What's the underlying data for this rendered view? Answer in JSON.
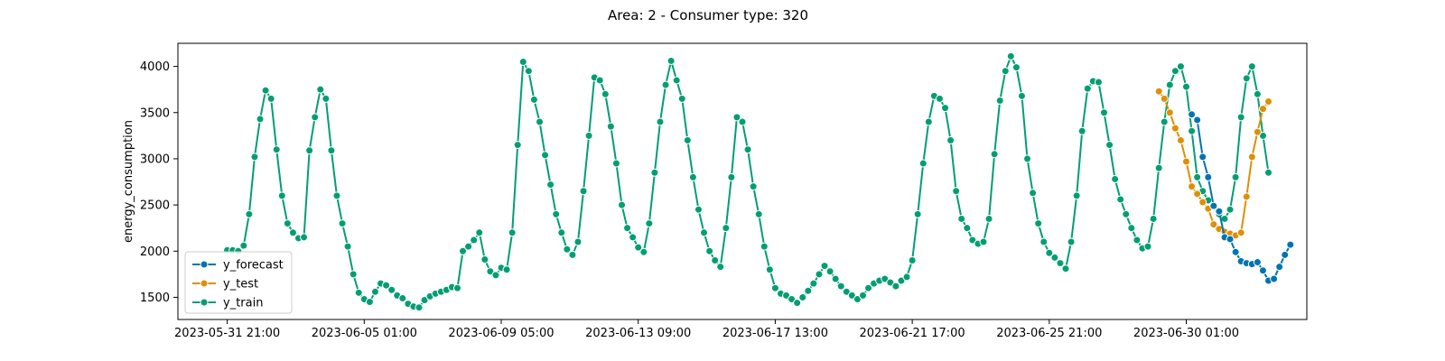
{
  "chart_data": {
    "type": "line",
    "title": "Area: 2 - Consumer type: 320",
    "xlabel": "",
    "ylabel": "energy_consumption",
    "x_start": "2023-05-31 21:00",
    "x_step_hours": 4,
    "xticks": [
      {
        "label": "2023-05-31 21:00",
        "index": 0
      },
      {
        "label": "2023-06-05 01:00",
        "index": 25
      },
      {
        "label": "2023-06-09 05:00",
        "index": 50
      },
      {
        "label": "2023-06-13 09:00",
        "index": 75
      },
      {
        "label": "2023-06-17 13:00",
        "index": 100
      },
      {
        "label": "2023-06-21 17:00",
        "index": 125
      },
      {
        "label": "2023-06-25 21:00",
        "index": 150
      },
      {
        "label": "2023-06-30 01:00",
        "index": 175
      }
    ],
    "yticks": [
      1500,
      2000,
      2500,
      3000,
      3500,
      4000
    ],
    "xlim": [
      -9,
      197
    ],
    "ylim": [
      1260,
      4250
    ],
    "legend_position": "lower-left",
    "series": [
      {
        "name": "y_forecast",
        "color": "#0173b2",
        "start_index": 176,
        "values": [
          3480,
          3420,
          3020,
          2800,
          2490,
          2430,
          2150,
          2130,
          1990,
          1890,
          1870,
          1860,
          1880,
          1790,
          1680,
          1700,
          1830,
          1960,
          2070
        ]
      },
      {
        "name": "y_test",
        "color": "#de8f05",
        "start_index": 170,
        "values": [
          3730,
          3650,
          3500,
          3330,
          3200,
          2970,
          2700,
          2620,
          2530,
          2460,
          2290,
          2240,
          2210,
          2190,
          2170,
          2200,
          2590,
          3020,
          3290,
          3540,
          3620
        ]
      },
      {
        "name": "y_train",
        "color": "#029e73",
        "start_index": 0,
        "values": [
          2010,
          2010,
          2000,
          2060,
          2400,
          3020,
          3430,
          3740,
          3650,
          3100,
          2600,
          2300,
          2200,
          2140,
          2150,
          3090,
          3450,
          3750,
          3650,
          3090,
          2600,
          2300,
          2050,
          1750,
          1550,
          1480,
          1450,
          1560,
          1650,
          1630,
          1580,
          1520,
          1490,
          1430,
          1400,
          1390,
          1470,
          1510,
          1540,
          1560,
          1580,
          1610,
          1600,
          2000,
          2050,
          2120,
          2200,
          1910,
          1780,
          1740,
          1820,
          1800,
          2200,
          3150,
          4050,
          3950,
          3640,
          3400,
          3040,
          2720,
          2400,
          2200,
          2020,
          1960,
          2100,
          2650,
          3250,
          3880,
          3850,
          3700,
          3350,
          2950,
          2500,
          2250,
          2150,
          2040,
          1990,
          2300,
          2850,
          3400,
          3800,
          4060,
          3850,
          3650,
          3200,
          2800,
          2450,
          2200,
          2000,
          1900,
          1830,
          2250,
          2800,
          3450,
          3400,
          3100,
          2700,
          2400,
          2050,
          1800,
          1600,
          1540,
          1520,
          1480,
          1440,
          1500,
          1570,
          1650,
          1750,
          1840,
          1780,
          1700,
          1620,
          1560,
          1520,
          1480,
          1520,
          1600,
          1650,
          1680,
          1700,
          1660,
          1620,
          1680,
          1720,
          1900,
          2400,
          2950,
          3400,
          3680,
          3650,
          3550,
          3200,
          2650,
          2350,
          2250,
          2120,
          2080,
          2100,
          2350,
          3050,
          3630,
          3950,
          4110,
          3990,
          3680,
          3000,
          2630,
          2300,
          2100,
          1980,
          1930,
          1870,
          1810,
          2100,
          2600,
          3300,
          3760,
          3840,
          3830,
          3500,
          3150,
          2780,
          2560,
          2400,
          2250,
          2120,
          2030,
          2050,
          2350,
          2900,
          3400,
          3800,
          3950,
          4000,
          3780,
          3300,
          2800,
          2650,
          2550,
          2500,
          2400,
          2350,
          2450,
          2800,
          3450,
          3870,
          4000,
          3700,
          3250,
          2850
        ]
      }
    ]
  }
}
